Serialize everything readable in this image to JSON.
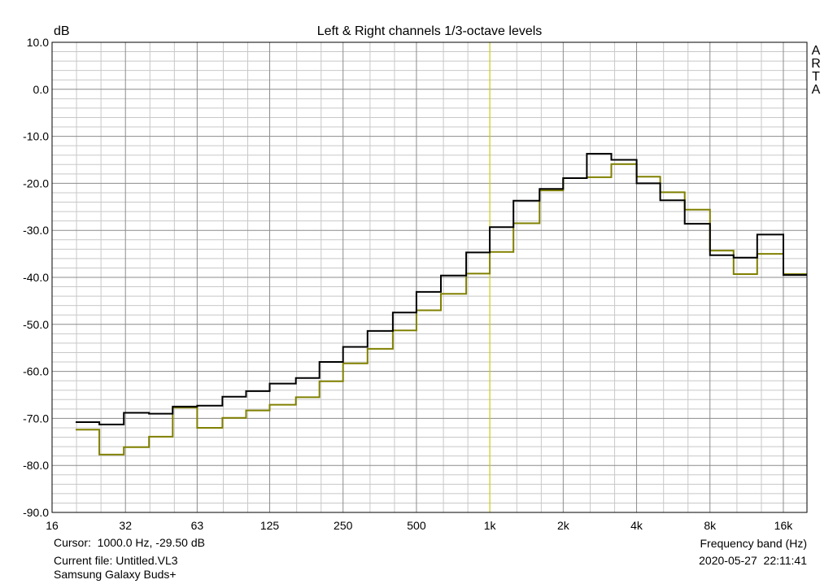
{
  "chart_data": {
    "type": "line",
    "step": true,
    "title": "Left & Right channels 1/3-octave levels",
    "ylabel": "dB",
    "xlabel": "Frequency band (Hz)",
    "x_scale": "log",
    "ylim": [
      -90,
      10
    ],
    "xlim": [
      16,
      20000
    ],
    "y_ticks": [
      10,
      0,
      -10,
      -20,
      -30,
      -40,
      -50,
      -60,
      -70,
      -80,
      -90
    ],
    "y_tick_labels": [
      "10.0",
      "0.0",
      "-10.0",
      "-20.0",
      "-30.0",
      "-40.0",
      "-50.0",
      "-60.0",
      "-70.0",
      "-80.0",
      "-90.0"
    ],
    "x_ticks": [
      16,
      32,
      63,
      125,
      250,
      500,
      1000,
      2000,
      4000,
      8000,
      16000
    ],
    "x_tick_labels": [
      "16",
      "32",
      "63",
      "125",
      "250",
      "500",
      "1k",
      "2k",
      "4k",
      "8k",
      "16k"
    ],
    "grid": true,
    "cursor_x": 1000,
    "cursor_color": "#d8d800",
    "bands": [
      20,
      25,
      31.5,
      40,
      50,
      63,
      80,
      100,
      125,
      160,
      200,
      250,
      315,
      400,
      500,
      630,
      800,
      1000,
      1250,
      1600,
      2000,
      2500,
      3150,
      4000,
      5000,
      6300,
      8000,
      10000,
      12500,
      16000,
      20000
    ],
    "series": [
      {
        "color": "#000000",
        "values": [
          -70.8,
          -71.3,
          -68.8,
          -69.0,
          -67.5,
          -67.3,
          -65.4,
          -64.2,
          -62.6,
          -61.4,
          -58.0,
          -54.8,
          -51.4,
          -47.5,
          -43.1,
          -39.6,
          -34.7,
          -29.3,
          -23.7,
          -21.2,
          -18.9,
          -13.7,
          -15.0,
          -20.0,
          -23.6,
          -28.6,
          -35.3,
          -35.8,
          -30.9,
          -39.5
        ]
      },
      {
        "color": "#808000",
        "values": [
          -72.4,
          -77.7,
          -76.1,
          -73.9,
          -67.7,
          -72.0,
          -69.9,
          -68.3,
          -67.1,
          -65.5,
          -62.1,
          -58.3,
          -55.2,
          -51.3,
          -47.0,
          -43.5,
          -39.2,
          -34.6,
          -28.5,
          -21.5,
          -18.9,
          -18.7,
          -15.9,
          -18.6,
          -21.9,
          -25.6,
          -34.3,
          -39.3,
          -35.0,
          -39.3
        ]
      }
    ]
  },
  "watermark": [
    "A",
    "R",
    "T",
    "A"
  ],
  "info": {
    "cursor": "Cursor:  1000.0 Hz, -29.50 dB",
    "current_file": "Current file: Untitled.VL3",
    "device": "Samsung Galaxy Buds+",
    "timestamp": "2020-05-27  22:11:41"
  }
}
